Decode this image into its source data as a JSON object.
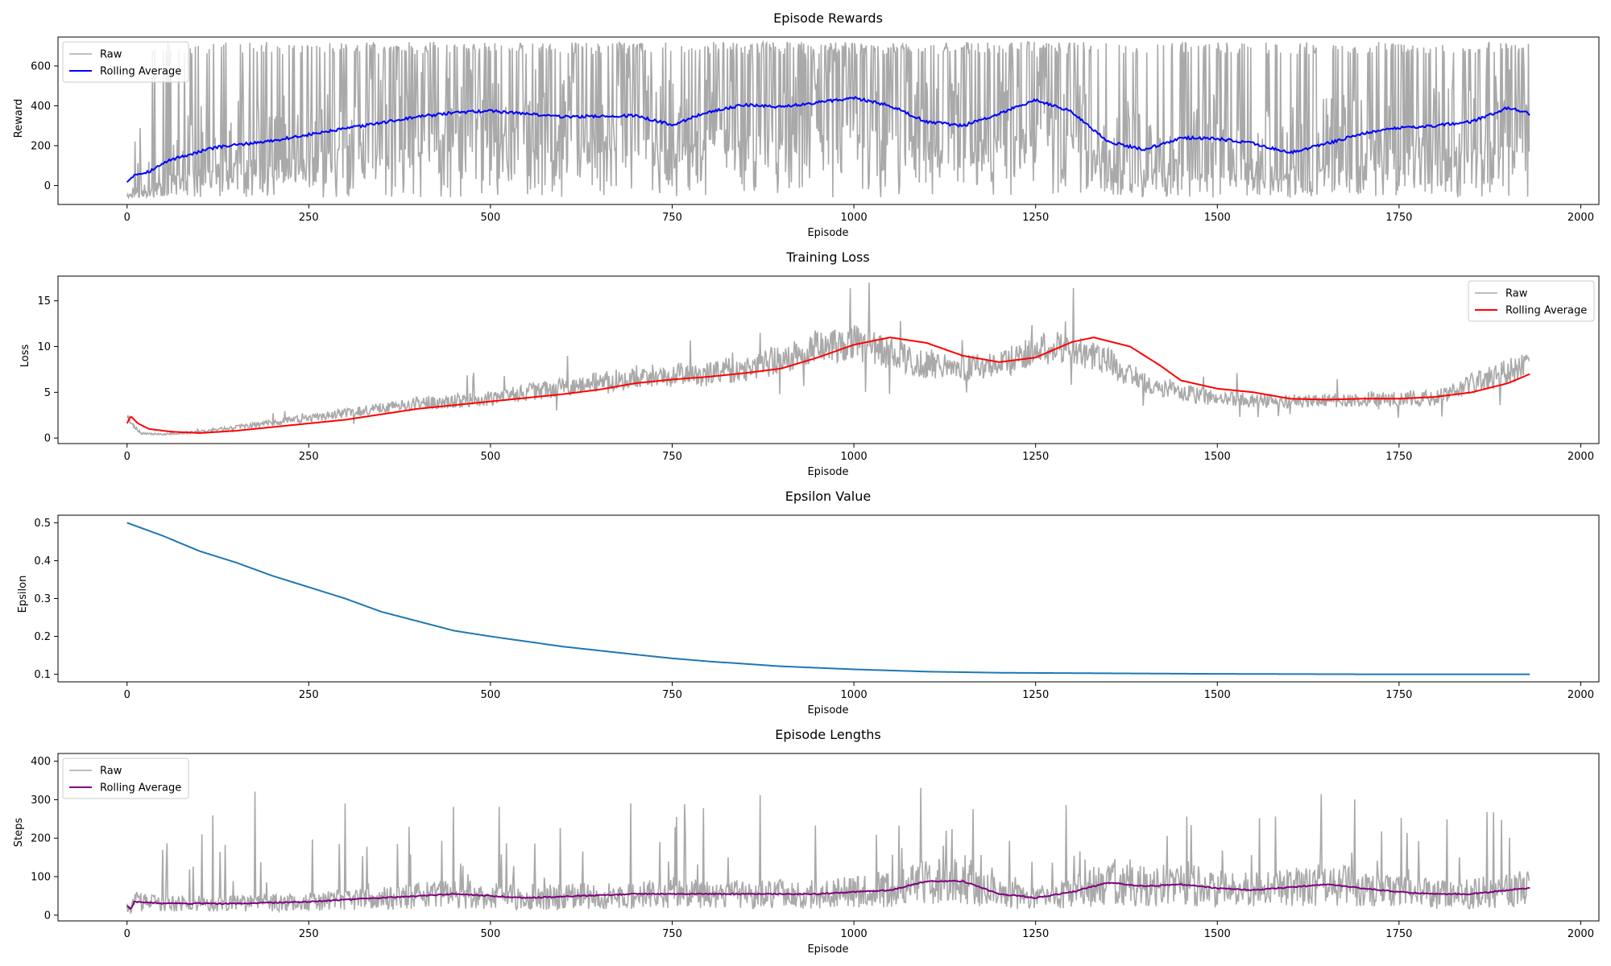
{
  "chart_data": [
    {
      "type": "line",
      "title": "Episode Rewards",
      "xlabel": "Episode",
      "ylabel": "Reward",
      "xlim": [
        -95,
        2025
      ],
      "ylim": [
        -95,
        745
      ],
      "xticks": [
        0,
        250,
        500,
        750,
        1000,
        1250,
        1500,
        1750,
        2000
      ],
      "yticks": [
        0,
        200,
        400,
        600
      ],
      "legend_position": "upper-left",
      "series": [
        {
          "name": "Raw",
          "color": "#a9a9a9",
          "kind": "raw",
          "n": 1930,
          "seed": 11,
          "min": -60,
          "max": 720,
          "rolling_avg_points": [
            [
              0,
              20
            ],
            [
              10,
              55
            ],
            [
              30,
              70
            ],
            [
              60,
              130
            ],
            [
              120,
              190
            ],
            [
              200,
              225
            ],
            [
              250,
              255
            ],
            [
              300,
              285
            ],
            [
              350,
              315
            ],
            [
              400,
              345
            ],
            [
              450,
              365
            ],
            [
              500,
              375
            ],
            [
              600,
              345
            ],
            [
              700,
              350
            ],
            [
              750,
              305
            ],
            [
              800,
              370
            ],
            [
              850,
              405
            ],
            [
              900,
              395
            ],
            [
              1000,
              440
            ],
            [
              1050,
              400
            ],
            [
              1100,
              320
            ],
            [
              1150,
              300
            ],
            [
              1200,
              360
            ],
            [
              1250,
              430
            ],
            [
              1300,
              370
            ],
            [
              1350,
              220
            ],
            [
              1400,
              180
            ],
            [
              1450,
              240
            ],
            [
              1500,
              235
            ],
            [
              1550,
              210
            ],
            [
              1600,
              165
            ],
            [
              1650,
              210
            ],
            [
              1700,
              260
            ],
            [
              1750,
              290
            ],
            [
              1800,
              300
            ],
            [
              1850,
              320
            ],
            [
              1900,
              390
            ],
            [
              1930,
              360
            ]
          ],
          "noise_low": 230,
          "noise_high": 380
        },
        {
          "name": "Rolling Average",
          "color": "#0000ff",
          "kind": "avg"
        }
      ]
    },
    {
      "type": "line",
      "title": "Training Loss",
      "xlabel": "Episode",
      "ylabel": "Loss",
      "xlim": [
        -95,
        2025
      ],
      "ylim": [
        -0.6,
        17.7
      ],
      "xticks": [
        0,
        250,
        500,
        750,
        1000,
        1250,
        1500,
        1750,
        2000
      ],
      "yticks": [
        0,
        5,
        10,
        15
      ],
      "legend_position": "upper-right",
      "series": [
        {
          "name": "Raw",
          "color": "#a9a9a9",
          "kind": "raw",
          "n": 1930,
          "seed": 23,
          "base_points": [
            [
              0,
              2.5
            ],
            [
              10,
              1.2
            ],
            [
              20,
              0.5
            ],
            [
              50,
              0.4
            ],
            [
              100,
              0.7
            ],
            [
              200,
              1.7
            ],
            [
              300,
              2.7
            ],
            [
              400,
              3.8
            ],
            [
              500,
              4.3
            ],
            [
              600,
              5.6
            ],
            [
              700,
              6.7
            ],
            [
              800,
              7.0
            ],
            [
              900,
              8.5
            ],
            [
              950,
              10.0
            ],
            [
              1000,
              10.5
            ],
            [
              1050,
              9.2
            ],
            [
              1100,
              8.0
            ],
            [
              1150,
              7.6
            ],
            [
              1200,
              8.0
            ],
            [
              1250,
              9.5
            ],
            [
              1300,
              10.0
            ],
            [
              1350,
              8.3
            ],
            [
              1400,
              6.0
            ],
            [
              1450,
              5.0
            ],
            [
              1500,
              4.3
            ],
            [
              1600,
              4.0
            ],
            [
              1700,
              4.2
            ],
            [
              1800,
              4.4
            ],
            [
              1850,
              6.0
            ],
            [
              1930,
              8.0
            ]
          ],
          "noise_rel": 0.12,
          "spike_max": 17.0
        },
        {
          "name": "Rolling Average",
          "color": "#ff0000",
          "kind": "avg",
          "points": [
            [
              0,
              1.6
            ],
            [
              5,
              2.4
            ],
            [
              15,
              1.6
            ],
            [
              30,
              1.0
            ],
            [
              60,
              0.7
            ],
            [
              100,
              0.55
            ],
            [
              150,
              0.8
            ],
            [
              200,
              1.2
            ],
            [
              250,
              1.6
            ],
            [
              300,
              2.0
            ],
            [
              400,
              3.2
            ],
            [
              500,
              4.0
            ],
            [
              600,
              4.8
            ],
            [
              650,
              5.3
            ],
            [
              700,
              6.0
            ],
            [
              750,
              6.4
            ],
            [
              800,
              6.7
            ],
            [
              850,
              7.1
            ],
            [
              900,
              7.6
            ],
            [
              950,
              8.8
            ],
            [
              1000,
              10.2
            ],
            [
              1050,
              11.0
            ],
            [
              1100,
              10.4
            ],
            [
              1150,
              9.0
            ],
            [
              1200,
              8.3
            ],
            [
              1250,
              8.8
            ],
            [
              1300,
              10.5
            ],
            [
              1330,
              11.0
            ],
            [
              1380,
              10.0
            ],
            [
              1420,
              8.0
            ],
            [
              1450,
              6.3
            ],
            [
              1500,
              5.4
            ],
            [
              1550,
              5.0
            ],
            [
              1600,
              4.3
            ],
            [
              1650,
              4.2
            ],
            [
              1700,
              4.3
            ],
            [
              1750,
              4.3
            ],
            [
              1800,
              4.5
            ],
            [
              1850,
              5.0
            ],
            [
              1900,
              6.0
            ],
            [
              1930,
              7.0
            ]
          ]
        }
      ]
    },
    {
      "type": "line",
      "title": "Epsilon Value",
      "xlabel": "Episode",
      "ylabel": "Epsilon",
      "xlim": [
        -95,
        2025
      ],
      "ylim": [
        0.08,
        0.52
      ],
      "xticks": [
        0,
        250,
        500,
        750,
        1000,
        1250,
        1500,
        1750,
        2000
      ],
      "yticks": [
        0.1,
        0.2,
        0.3,
        0.4,
        0.5
      ],
      "series": [
        {
          "name": "",
          "color": "#1f77b4",
          "kind": "avg",
          "points": [
            [
              0,
              0.5
            ],
            [
              50,
              0.465
            ],
            [
              100,
              0.425
            ],
            [
              150,
              0.395
            ],
            [
              200,
              0.36
            ],
            [
              250,
              0.33
            ],
            [
              300,
              0.3
            ],
            [
              350,
              0.265
            ],
            [
              400,
              0.24
            ],
            [
              450,
              0.215
            ],
            [
              500,
              0.2
            ],
            [
              600,
              0.173
            ],
            [
              700,
              0.152
            ],
            [
              750,
              0.142
            ],
            [
              800,
              0.134
            ],
            [
              900,
              0.121
            ],
            [
              1000,
              0.113
            ],
            [
              1100,
              0.107
            ],
            [
              1200,
              0.104
            ],
            [
              1300,
              0.103
            ],
            [
              1500,
              0.101
            ],
            [
              1700,
              0.1
            ],
            [
              1930,
              0.1
            ]
          ]
        }
      ]
    },
    {
      "type": "line",
      "title": "Episode Lengths",
      "xlabel": "Episode",
      "ylabel": "Steps",
      "xlim": [
        -95,
        2025
      ],
      "ylim": [
        -15,
        420
      ],
      "xticks": [
        0,
        250,
        500,
        750,
        1000,
        1250,
        1500,
        1750,
        2000
      ],
      "yticks": [
        0,
        100,
        200,
        300,
        400
      ],
      "legend_position": "upper-left",
      "series": [
        {
          "name": "Raw",
          "color": "#a9a9a9",
          "kind": "raw",
          "n": 1930,
          "seed": 37,
          "min": 5,
          "max": 400,
          "rolling_avg_points": [
            [
              0,
              25
            ],
            [
              5,
              15
            ],
            [
              10,
              35
            ],
            [
              50,
              30
            ],
            [
              150,
              30
            ],
            [
              250,
              35
            ],
            [
              350,
              45
            ],
            [
              450,
              55
            ],
            [
              550,
              45
            ],
            [
              700,
              55
            ],
            [
              850,
              55
            ],
            [
              950,
              55
            ],
            [
              1000,
              60
            ],
            [
              1050,
              65
            ],
            [
              1100,
              88
            ],
            [
              1150,
              88
            ],
            [
              1200,
              55
            ],
            [
              1250,
              45
            ],
            [
              1300,
              60
            ],
            [
              1350,
              85
            ],
            [
              1400,
              75
            ],
            [
              1450,
              80
            ],
            [
              1500,
              70
            ],
            [
              1550,
              65
            ],
            [
              1650,
              80
            ],
            [
              1700,
              70
            ],
            [
              1750,
              60
            ],
            [
              1800,
              55
            ],
            [
              1850,
              55
            ],
            [
              1900,
              65
            ],
            [
              1930,
              70
            ]
          ],
          "noise_scale": 0.6
        },
        {
          "name": "Rolling Average",
          "color": "#800080",
          "kind": "avg"
        }
      ]
    }
  ]
}
